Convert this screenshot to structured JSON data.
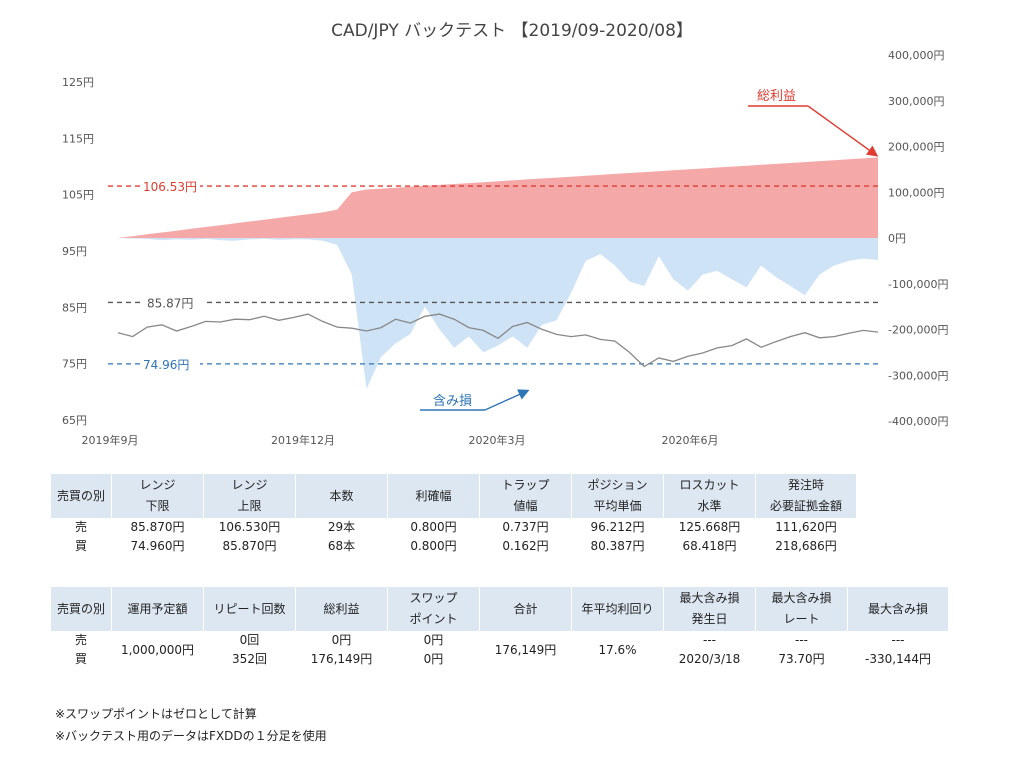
{
  "chart_data": {
    "type": "area",
    "title": "CAD/JPY バックテスト 【2019/09-2020/08】",
    "x_tick_labels": [
      "2019年9月",
      "2019年12月",
      "2020年3月",
      "2020年6月"
    ],
    "y_left": {
      "ticks": [
        "125円",
        "115円",
        "105円",
        "95円",
        "85円",
        "75円",
        "65円"
      ],
      "range": [
        65,
        125
      ]
    },
    "y_right": {
      "ticks": [
        "400,000円",
        "300,000円",
        "200,000円",
        "100,000円",
        "0円",
        "-100,000円",
        "-200,000円",
        "-300,000円",
        "-400,000円"
      ],
      "range": [
        -400000,
        400000
      ]
    },
    "reference_lines": [
      {
        "label": "106.53円",
        "value": 106.53,
        "color": "#e03c31"
      },
      {
        "label": "85.87円",
        "value": 85.87,
        "color": "#555555"
      },
      {
        "label": "74.96円",
        "value": 74.96,
        "color": "#2e75b6"
      }
    ],
    "annotations": [
      {
        "text": "総利益",
        "color": "#e03c31"
      },
      {
        "text": "含み損",
        "color": "#2e75b6"
      }
    ],
    "series": [
      {
        "type": "area",
        "axis": "right",
        "color": "#f4a9a8",
        "values": [
          0,
          4000,
          8000,
          12000,
          16000,
          20000,
          24000,
          28000,
          32000,
          36000,
          40000,
          44000,
          48000,
          52000,
          56000,
          62000,
          100000,
          106000,
          108000,
          110000,
          112000,
          114000,
          116000,
          118000,
          120000,
          122000,
          124000,
          126000,
          128000,
          130000,
          132000,
          134000,
          136000,
          138000,
          140000,
          142000,
          144000,
          146000,
          148000,
          150000,
          152000,
          154000,
          156000,
          158000,
          160000,
          162000,
          164000,
          166000,
          168000,
          170000,
          172000,
          174000,
          176149
        ]
      },
      {
        "type": "area",
        "axis": "right",
        "color": "#cfe3f7",
        "values": [
          0,
          -1000,
          -2000,
          -5000,
          -3000,
          -4000,
          -2000,
          -5000,
          -6000,
          -3000,
          -2000,
          -4000,
          -3000,
          -3000,
          -6000,
          -15000,
          -80000,
          -330144,
          -260000,
          -230000,
          -210000,
          -150000,
          -200000,
          -240000,
          -215000,
          -250000,
          -235000,
          -215000,
          -240000,
          -190000,
          -180000,
          -120000,
          -50000,
          -35000,
          -60000,
          -95000,
          -105000,
          -40000,
          -90000,
          -115000,
          -80000,
          -72000,
          -90000,
          -108000,
          -60000,
          -85000,
          -105000,
          -125000,
          -80000,
          -60000,
          -50000,
          -45000,
          -48000
        ]
      },
      {
        "type": "line",
        "axis": "left",
        "color": "#888888",
        "name": "CAD/JPY",
        "values": [
          80.5,
          79.8,
          81.5,
          81.9,
          80.8,
          81.6,
          82.5,
          82.4,
          82.9,
          82.8,
          83.4,
          82.7,
          83.2,
          83.8,
          82.5,
          81.5,
          81.3,
          80.8,
          81.4,
          82.9,
          82.2,
          83.4,
          83.8,
          82.9,
          81.4,
          80.9,
          79.5,
          81.6,
          82.3,
          81.1,
          80.2,
          79.8,
          80.1,
          79.3,
          79.0,
          77.0,
          74.5,
          76.0,
          75.4,
          76.3,
          76.9,
          77.8,
          78.2,
          79.4,
          77.9,
          78.9,
          79.8,
          80.5,
          79.6,
          79.8,
          80.4,
          80.9,
          80.6
        ]
      }
    ]
  },
  "table1": {
    "headers": [
      [
        "売買の別"
      ],
      [
        "レンジ",
        "下限"
      ],
      [
        "レンジ",
        "上限"
      ],
      [
        "本数"
      ],
      [
        "利確幅"
      ],
      [
        "トラップ",
        "値幅"
      ],
      [
        "ポジション",
        "平均単価"
      ],
      [
        "ロスカット",
        "水準"
      ],
      [
        "発注時",
        "必要証拠金額"
      ]
    ],
    "rows": [
      [
        "売",
        "85.870円",
        "106.530円",
        "29本",
        "0.800円",
        "0.737円",
        "96.212円",
        "125.668円",
        "111,620円"
      ],
      [
        "買",
        "74.960円",
        "85.870円",
        "68本",
        "0.800円",
        "0.162円",
        "80.387円",
        "68.418円",
        "218,686円"
      ]
    ]
  },
  "table2": {
    "headers": [
      [
        "売買の別"
      ],
      [
        "運用予定額"
      ],
      [
        "リピート回数"
      ],
      [
        "総利益"
      ],
      [
        "スワップ",
        "ポイント"
      ],
      [
        "合計"
      ],
      [
        "年平均利回り"
      ],
      [
        "最大含み損",
        "発生日"
      ],
      [
        "最大含み損",
        "レート"
      ],
      [
        "最大含み損"
      ]
    ],
    "sides": [
      "売",
      "買"
    ],
    "budget": "1,000,000円",
    "repeat": [
      "0回",
      "352回"
    ],
    "profit": [
      "0円",
      "176,149円"
    ],
    "swap": [
      "0円",
      "0円"
    ],
    "total": "176,149円",
    "yield": "17.6%",
    "date": [
      "---",
      "2020/3/18"
    ],
    "rate": [
      "---",
      "73.70円"
    ],
    "maxloss": [
      "---",
      "-330,144円"
    ]
  },
  "notes": [
    "※スワップポイントはゼロとして計算",
    "※バックテスト用のデータはFXDDの１分足を使用"
  ]
}
